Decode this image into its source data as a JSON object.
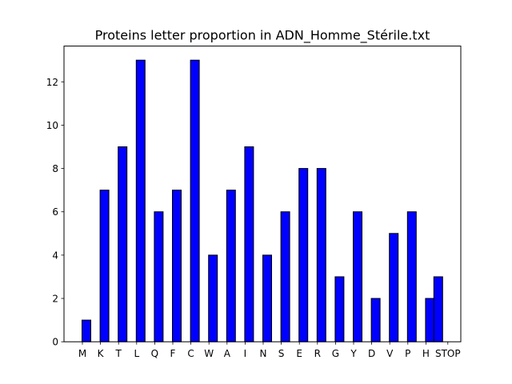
{
  "chart_data": {
    "type": "bar",
    "title": "Proteins letter proportion in ADN_Homme_Stérile.txt",
    "xlabel": "",
    "ylabel": "",
    "categories": [
      "M",
      "K",
      "T",
      "L",
      "Q",
      "F",
      "C",
      "W",
      "A",
      "I",
      "N",
      "S",
      "E",
      "R",
      "G",
      "Y",
      "D",
      "V",
      "P",
      "H",
      "STOP"
    ],
    "values": [
      1,
      7,
      9,
      13,
      6,
      7,
      13,
      4,
      7,
      9,
      4,
      6,
      8,
      8,
      3,
      6,
      2,
      5,
      6,
      2,
      3
    ],
    "ylim": [
      0,
      13.65
    ],
    "yticks": [
      0,
      2,
      4,
      6,
      8,
      10,
      12
    ],
    "grid": false,
    "legend": "none",
    "colors": {
      "bar_fill": "#0000ff",
      "bar_edge": "#000000"
    }
  }
}
